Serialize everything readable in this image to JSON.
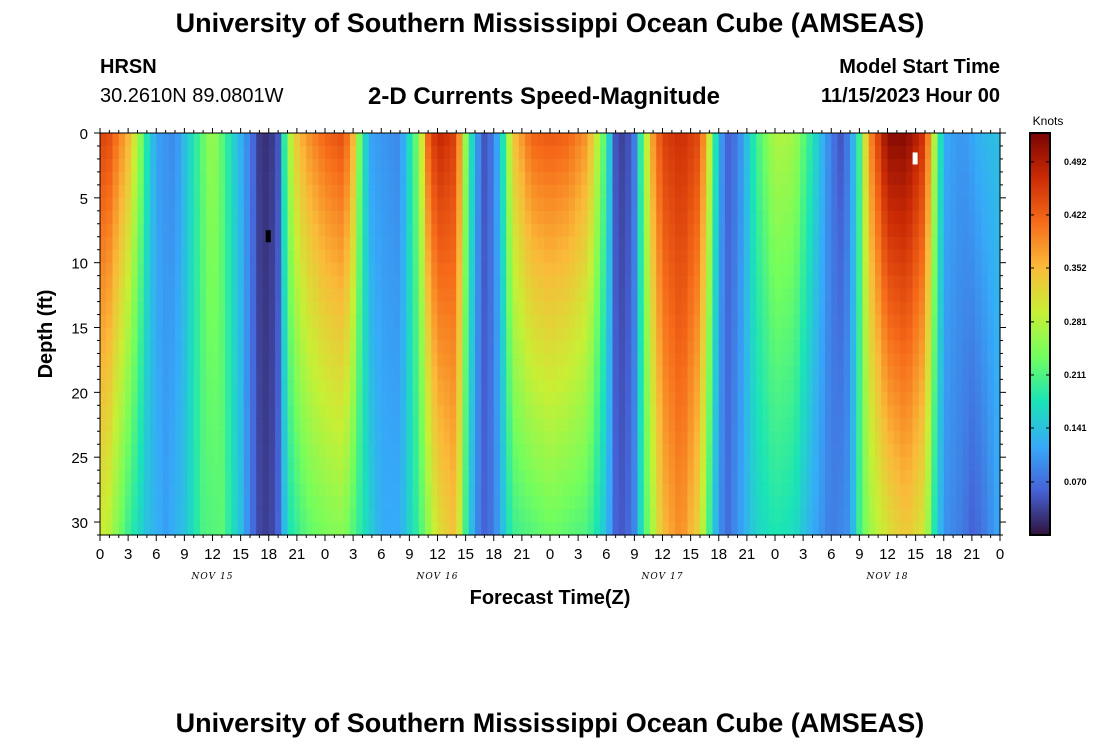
{
  "header": {
    "title": "University of Southern Mississippi Ocean Cube (AMSEAS)",
    "station": "HRSN",
    "coordinates": "30.2610N  89.0801W",
    "subtitle": "2-D Currents Speed-Magnitude",
    "model_start_label": "Model Start Time",
    "model_start_value": "11/15/2023 Hour 00"
  },
  "footer": {
    "title": "University of Southern Mississippi Ocean Cube (AMSEAS)"
  },
  "chart_data": {
    "type": "heatmap",
    "xlabel": "Forecast Time(Z)",
    "ylabel": "Depth (ft)",
    "x_range_hours": [
      0,
      96
    ],
    "y_range_ft": [
      0,
      31
    ],
    "x_ticks": [
      "0",
      "3",
      "6",
      "9",
      "12",
      "15",
      "18",
      "21",
      "0",
      "3",
      "6",
      "9",
      "12",
      "15",
      "18",
      "21",
      "0",
      "3",
      "6",
      "9",
      "12",
      "15",
      "18",
      "21",
      "0",
      "3",
      "6",
      "9",
      "12",
      "15",
      "18",
      "21",
      "0"
    ],
    "y_ticks": [
      0,
      5,
      10,
      15,
      20,
      25,
      30
    ],
    "day_labels": [
      {
        "label": "NOV 15",
        "hour": 12
      },
      {
        "label": "NOV 16",
        "hour": 36
      },
      {
        "label": "NOV 17",
        "hour": 60
      },
      {
        "label": "NOV 18",
        "hour": 84
      }
    ],
    "colorbar": {
      "unit": "Knots",
      "min": 0.0,
      "max": 0.53,
      "ticks": [
        "0.070",
        "0.141",
        "0.211",
        "0.281",
        "0.352",
        "0.422",
        "0.492"
      ],
      "colors": [
        "#30123b",
        "#4662d7",
        "#36aaf9",
        "#1ae4b6",
        "#72fe5e",
        "#c8ef34",
        "#faba39",
        "#f66b19",
        "#cb2a04",
        "#7a0403"
      ]
    },
    "surface_speed_knots_by_hour": [
      [
        0,
        0.45
      ],
      [
        1,
        0.44
      ],
      [
        3,
        0.36
      ],
      [
        4,
        0.28
      ],
      [
        5,
        0.18
      ],
      [
        6,
        0.11
      ],
      [
        8,
        0.09
      ],
      [
        10,
        0.18
      ],
      [
        12,
        0.27
      ],
      [
        14,
        0.17
      ],
      [
        16,
        0.08
      ],
      [
        17,
        0.03
      ],
      [
        18,
        0.02
      ],
      [
        19,
        0.05
      ],
      [
        20,
        0.26
      ],
      [
        21,
        0.34
      ],
      [
        22,
        0.38
      ],
      [
        24,
        0.42
      ],
      [
        26,
        0.44
      ],
      [
        27,
        0.36
      ],
      [
        28,
        0.18
      ],
      [
        29,
        0.11
      ],
      [
        32,
        0.09
      ],
      [
        34,
        0.25
      ],
      [
        35,
        0.42
      ],
      [
        36,
        0.48
      ],
      [
        38,
        0.45
      ],
      [
        39,
        0.26
      ],
      [
        40,
        0.12
      ],
      [
        41,
        0.05
      ],
      [
        42,
        0.08
      ],
      [
        43,
        0.18
      ],
      [
        44,
        0.34
      ],
      [
        46,
        0.42
      ],
      [
        48,
        0.43
      ],
      [
        50,
        0.42
      ],
      [
        52,
        0.38
      ],
      [
        54,
        0.2
      ],
      [
        55,
        0.05
      ],
      [
        56,
        0.03
      ],
      [
        57,
        0.08
      ],
      [
        58,
        0.25
      ],
      [
        59,
        0.38
      ],
      [
        60,
        0.45
      ],
      [
        62,
        0.47
      ],
      [
        64,
        0.44
      ],
      [
        65,
        0.3
      ],
      [
        66,
        0.12
      ],
      [
        67,
        0.06
      ],
      [
        68,
        0.08
      ],
      [
        70,
        0.2
      ],
      [
        72,
        0.28
      ],
      [
        74,
        0.27
      ],
      [
        76,
        0.18
      ],
      [
        78,
        0.08
      ],
      [
        79,
        0.05
      ],
      [
        80,
        0.09
      ],
      [
        81,
        0.2
      ],
      [
        82,
        0.38
      ],
      [
        84,
        0.52
      ],
      [
        86,
        0.52
      ],
      [
        88,
        0.46
      ],
      [
        89,
        0.28
      ],
      [
        90,
        0.12
      ],
      [
        92,
        0.1
      ],
      [
        94,
        0.13
      ],
      [
        96,
        0.14
      ]
    ],
    "deep_speed_knots_by_hour": [
      [
        0,
        0.3
      ],
      [
        1,
        0.28
      ],
      [
        3,
        0.2
      ],
      [
        5,
        0.14
      ],
      [
        7,
        0.11
      ],
      [
        9,
        0.14
      ],
      [
        11,
        0.21
      ],
      [
        13,
        0.22
      ],
      [
        15,
        0.14
      ],
      [
        16,
        0.08
      ],
      [
        17,
        0.04
      ],
      [
        18,
        0.03
      ],
      [
        19,
        0.06
      ],
      [
        20,
        0.17
      ],
      [
        22,
        0.22
      ],
      [
        24,
        0.24
      ],
      [
        26,
        0.25
      ],
      [
        28,
        0.18
      ],
      [
        30,
        0.12
      ],
      [
        32,
        0.12
      ],
      [
        34,
        0.2
      ],
      [
        36,
        0.31
      ],
      [
        38,
        0.35
      ],
      [
        39,
        0.2
      ],
      [
        40,
        0.1
      ],
      [
        41,
        0.06
      ],
      [
        42,
        0.08
      ],
      [
        44,
        0.2
      ],
      [
        48,
        0.23
      ],
      [
        52,
        0.21
      ],
      [
        54,
        0.14
      ],
      [
        55,
        0.06
      ],
      [
        56,
        0.05
      ],
      [
        57,
        0.09
      ],
      [
        58,
        0.2
      ],
      [
        60,
        0.35
      ],
      [
        62,
        0.39
      ],
      [
        64,
        0.32
      ],
      [
        65,
        0.2
      ],
      [
        66,
        0.1
      ],
      [
        67,
        0.07
      ],
      [
        68,
        0.1
      ],
      [
        70,
        0.16
      ],
      [
        72,
        0.18
      ],
      [
        74,
        0.17
      ],
      [
        76,
        0.12
      ],
      [
        78,
        0.08
      ],
      [
        80,
        0.1
      ],
      [
        81,
        0.2
      ],
      [
        82,
        0.26
      ],
      [
        84,
        0.31
      ],
      [
        86,
        0.34
      ],
      [
        88,
        0.3
      ],
      [
        89,
        0.18
      ],
      [
        90,
        0.1
      ],
      [
        92,
        0.08
      ],
      [
        93,
        0.06
      ],
      [
        94,
        0.07
      ],
      [
        96,
        0.12
      ]
    ]
  }
}
